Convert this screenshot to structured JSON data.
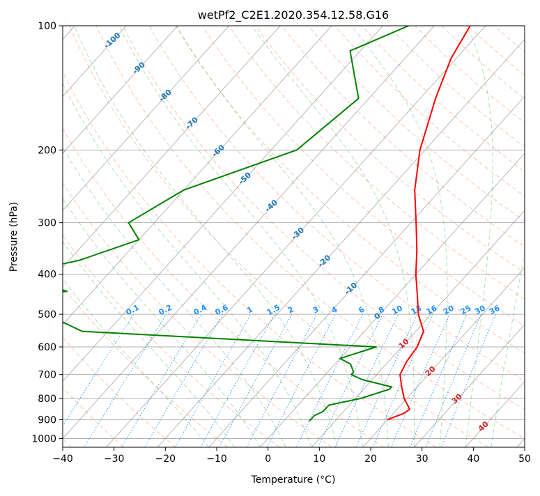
{
  "chart_data": {
    "type": "line",
    "title": "wetPf2_C2E1.2020.354.12.58.G16",
    "xlabel": "Temperature (°C)",
    "ylabel": "Pressure (hPa)",
    "xlim": [
      -40,
      50
    ],
    "ylim": [
      1050,
      100
    ],
    "y_scale": "log",
    "grid": true,
    "x_ticks": [
      -40,
      -30,
      -20,
      -10,
      0,
      10,
      20,
      30,
      40,
      50
    ],
    "y_ticks": [
      100,
      200,
      300,
      400,
      500,
      600,
      700,
      800,
      900,
      1000
    ],
    "series": [
      {
        "role": "temperature",
        "color": "#ff0000",
        "points": [
          [
            -33,
            100
          ],
          [
            -31,
            120
          ],
          [
            -27,
            150
          ],
          [
            -21,
            200
          ],
          [
            -15,
            250
          ],
          [
            -9,
            300
          ],
          [
            -4,
            350
          ],
          [
            0,
            400
          ],
          [
            4,
            450
          ],
          [
            7.5,
            500
          ],
          [
            11.5,
            550
          ],
          [
            13,
            600
          ],
          [
            13.5,
            650
          ],
          [
            14.5,
            700
          ],
          [
            17,
            750
          ],
          [
            19.5,
            800
          ],
          [
            22.5,
            850
          ],
          [
            22,
            870
          ],
          [
            20,
            900
          ]
        ]
      },
      {
        "role": "dewpoint",
        "color": "#008000",
        "points": [
          [
            -45,
            100
          ],
          [
            -52,
            115
          ],
          [
            -42,
            150
          ],
          [
            -45,
            200
          ],
          [
            -60,
            250
          ],
          [
            -65,
            300
          ],
          [
            -60,
            330
          ],
          [
            -68,
            370
          ],
          [
            -78,
            400
          ],
          [
            -65,
            440
          ],
          [
            -95,
            480
          ],
          [
            -65,
            500
          ],
          [
            -55,
            550
          ],
          [
            5,
            600
          ],
          [
            0,
            640
          ],
          [
            3,
            660
          ],
          [
            5,
            690
          ],
          [
            5,
            700
          ],
          [
            8,
            720
          ],
          [
            15,
            750
          ],
          [
            15,
            760
          ],
          [
            11,
            800
          ],
          [
            6,
            830
          ],
          [
            6,
            860
          ],
          [
            5,
            880
          ],
          [
            5,
            890
          ],
          [
            5,
            905
          ]
        ]
      }
    ],
    "isotherm_labels": [
      "-100",
      "-90",
      "-80",
      "-70",
      "-60",
      "-50",
      "-40",
      "-30",
      "-20",
      "-10",
      "0",
      "10",
      "20",
      "30",
      "40"
    ],
    "mixing_ratio_labels": [
      "0.1",
      "0.2",
      "0.4",
      "0.6",
      "1",
      "1.5",
      "2",
      "3",
      "4",
      "6",
      "8",
      "10",
      "13",
      "16",
      "20",
      "25",
      "30",
      "36"
    ],
    "colors": {
      "temperature": "#ff0000",
      "dewpoint": "#008000",
      "isotherm_labels_cold": "#1f77b4",
      "isotherm_labels_warm": "#d62728",
      "mixing_ratio": "#1e90ff",
      "dry_adiabat": "#ff7f50",
      "moist_adiabat": "#2ca02c",
      "isotherm": "#7f7f7f"
    }
  }
}
